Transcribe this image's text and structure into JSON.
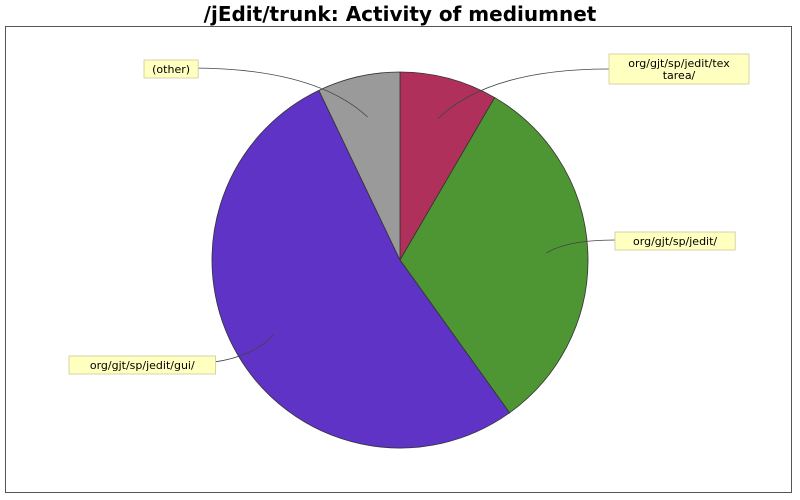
{
  "chart_data": {
    "type": "pie",
    "title": "/jEdit/trunk: Activity of mediumnet",
    "slices": [
      {
        "label": [
          "org/gjt/sp/jedit/tex",
          "tarea/"
        ],
        "value": 8.4,
        "color": "#b0305c"
      },
      {
        "label": [
          "org/gjt/sp/jedit/"
        ],
        "value": 31.7,
        "color": "#4e9533"
      },
      {
        "label": [
          "org/gjt/sp/jedit/gui/"
        ],
        "value": 52.8,
        "color": "#5e33c5"
      },
      {
        "label": [
          "(other)"
        ],
        "value": 7.1,
        "color": "#9a9a9a"
      }
    ],
    "label_box_color": "#ffffc0",
    "start_angle": "12 o'clock, clockwise"
  }
}
